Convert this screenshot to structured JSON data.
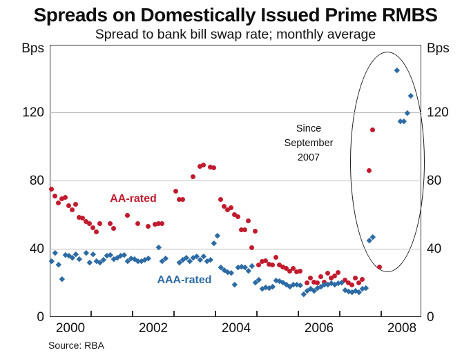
{
  "title": "Spreads on Domestically Issued Prime RMBS",
  "subtitle": "Spread to bank bill swap rate; monthly average",
  "source": "Source: RBA",
  "annotation": {
    "lines": [
      "Since",
      "September",
      "2007"
    ]
  },
  "series_labels": {
    "aa": "AA-rated",
    "aaa": "AAA-rated"
  },
  "colors": {
    "aa": "#c11b2e",
    "aaa": "#2e6ba4",
    "grid": "#bcbcbc",
    "frame": "#2e2e2e"
  },
  "chart_data": {
    "type": "scatter",
    "title": "Spreads on Domestically Issued Prime RMBS",
    "subtitle": "Spread to bank bill swap rate; monthly average",
    "ylabel_left": "Bps",
    "ylabel_right": "Bps",
    "ylim": [
      0,
      160
    ],
    "yticks": [
      0,
      40,
      80,
      120
    ],
    "gridlines": [
      40,
      80,
      120
    ],
    "x_domain_months": [
      "2000-01",
      "2008-12"
    ],
    "xtick_years": [
      2001,
      2002,
      2003,
      2004,
      2005,
      2006,
      2007,
      2008
    ],
    "year_labels": [
      2000,
      2002,
      2004,
      2006,
      2008
    ],
    "legend_position": "inline-labels",
    "annotation_text": "Since September 2007",
    "series": [
      {
        "name": "AA-rated",
        "marker": "circle",
        "color": "#c11b2e",
        "points": [
          [
            "2000-01",
            75
          ],
          [
            "2000-02",
            71
          ],
          [
            "2000-03",
            67
          ],
          [
            "2000-04",
            69.5
          ],
          [
            "2000-05",
            70
          ],
          [
            "2000-06",
            65.5
          ],
          [
            "2000-07",
            63
          ],
          [
            "2000-08",
            66
          ],
          [
            "2000-09",
            58.5
          ],
          [
            "2000-10",
            58
          ],
          [
            "2000-11",
            56
          ],
          [
            "2000-12",
            55
          ],
          [
            "2001-01",
            52.5
          ],
          [
            "2001-02",
            50
          ],
          [
            "2001-03",
            55
          ],
          [
            "2001-06",
            55
          ],
          [
            "2001-07",
            52
          ],
          [
            "2001-11",
            59.5
          ],
          [
            "2002-02",
            55
          ],
          [
            "2002-05",
            53
          ],
          [
            "2002-07",
            54.5
          ],
          [
            "2002-08",
            55
          ],
          [
            "2002-09",
            55
          ],
          [
            "2003-01",
            74
          ],
          [
            "2003-02",
            69
          ],
          [
            "2003-03",
            69
          ],
          [
            "2003-06",
            82.5
          ],
          [
            "2003-08",
            88.5
          ],
          [
            "2003-09",
            89
          ],
          [
            "2003-11",
            88
          ],
          [
            "2003-12",
            87.5
          ],
          [
            "2004-02",
            69
          ],
          [
            "2004-03",
            65
          ],
          [
            "2004-04",
            63
          ],
          [
            "2004-05",
            64
          ],
          [
            "2004-06",
            60
          ],
          [
            "2004-07",
            59
          ],
          [
            "2004-08",
            51
          ],
          [
            "2004-09",
            51
          ],
          [
            "2004-10",
            56.5
          ],
          [
            "2004-11",
            40.5
          ],
          [
            "2004-12",
            50.5
          ],
          [
            "2005-01",
            30.5
          ],
          [
            "2005-02",
            32.5
          ],
          [
            "2005-03",
            33
          ],
          [
            "2005-04",
            31
          ],
          [
            "2005-05",
            30.5
          ],
          [
            "2005-06",
            35
          ],
          [
            "2005-07",
            30.5
          ],
          [
            "2005-08",
            29.5
          ],
          [
            "2005-09",
            28.5
          ],
          [
            "2005-10",
            27
          ],
          [
            "2005-11",
            28.5
          ],
          [
            "2005-12",
            26.5
          ],
          [
            "2006-01",
            27
          ],
          [
            "2006-03",
            20
          ],
          [
            "2006-04",
            23
          ],
          [
            "2006-05",
            20.5
          ],
          [
            "2006-06",
            20
          ],
          [
            "2006-07",
            23.5
          ],
          [
            "2006-08",
            20.5
          ],
          [
            "2006-09",
            25.5
          ],
          [
            "2006-10",
            23
          ],
          [
            "2006-11",
            24
          ],
          [
            "2006-12",
            26
          ],
          [
            "2007-02",
            21.5
          ],
          [
            "2007-03",
            20
          ],
          [
            "2007-04",
            19
          ],
          [
            "2007-05",
            23
          ],
          [
            "2007-06",
            20
          ],
          [
            "2007-07",
            22
          ],
          [
            "2007-09",
            86
          ],
          [
            "2007-10",
            110
          ],
          [
            "2007-12",
            29.5
          ]
        ]
      },
      {
        "name": "AAA-rated",
        "marker": "diamond",
        "color": "#2e6ba4",
        "points": [
          [
            "2000-01",
            33
          ],
          [
            "2000-02",
            37.5
          ],
          [
            "2000-03",
            31
          ],
          [
            "2000-04",
            22.5
          ],
          [
            "2000-05",
            36.5
          ],
          [
            "2000-06",
            36
          ],
          [
            "2000-07",
            35
          ],
          [
            "2000-08",
            37
          ],
          [
            "2000-09",
            34
          ],
          [
            "2000-11",
            37.5
          ],
          [
            "2000-12",
            32
          ],
          [
            "2001-01",
            37
          ],
          [
            "2001-02",
            33
          ],
          [
            "2001-03",
            32
          ],
          [
            "2001-04",
            33.5
          ],
          [
            "2001-05",
            36
          ],
          [
            "2001-06",
            36.5
          ],
          [
            "2001-07",
            34
          ],
          [
            "2001-08",
            35
          ],
          [
            "2001-09",
            36
          ],
          [
            "2001-10",
            36.5
          ],
          [
            "2001-11",
            33
          ],
          [
            "2001-12",
            34.5
          ],
          [
            "2002-01",
            34
          ],
          [
            "2002-02",
            33
          ],
          [
            "2002-03",
            33
          ],
          [
            "2002-04",
            33.5
          ],
          [
            "2002-05",
            34.5
          ],
          [
            "2002-08",
            41
          ],
          [
            "2002-09",
            33
          ],
          [
            "2002-10",
            34.5
          ],
          [
            "2003-02",
            32
          ],
          [
            "2003-03",
            33.5
          ],
          [
            "2003-04",
            35
          ],
          [
            "2003-05",
            33
          ],
          [
            "2003-06",
            35
          ],
          [
            "2003-07",
            35.5
          ],
          [
            "2003-08",
            33.5
          ],
          [
            "2003-09",
            35.5
          ],
          [
            "2003-10",
            33
          ],
          [
            "2003-11",
            33.5
          ],
          [
            "2003-12",
            43.5
          ],
          [
            "2004-01",
            48
          ],
          [
            "2004-02",
            29
          ],
          [
            "2004-03",
            27.5
          ],
          [
            "2004-04",
            26.5
          ],
          [
            "2004-05",
            26
          ],
          [
            "2004-06",
            19
          ],
          [
            "2004-07",
            29
          ],
          [
            "2004-08",
            29.5
          ],
          [
            "2004-09",
            29
          ],
          [
            "2004-10",
            27
          ],
          [
            "2004-11",
            30
          ],
          [
            "2004-12",
            20.5
          ],
          [
            "2005-01",
            22
          ],
          [
            "2005-02",
            16.5
          ],
          [
            "2005-03",
            17.5
          ],
          [
            "2005-04",
            17
          ],
          [
            "2005-05",
            18
          ],
          [
            "2005-06",
            21.5
          ],
          [
            "2005-07",
            21
          ],
          [
            "2005-08",
            20.5
          ],
          [
            "2005-09",
            19
          ],
          [
            "2005-10",
            18
          ],
          [
            "2005-11",
            19
          ],
          [
            "2005-12",
            19
          ],
          [
            "2006-01",
            18.5
          ],
          [
            "2006-02",
            13.5
          ],
          [
            "2006-03",
            15.5
          ],
          [
            "2006-04",
            16.5
          ],
          [
            "2006-05",
            15.5
          ],
          [
            "2006-06",
            17
          ],
          [
            "2006-07",
            18
          ],
          [
            "2006-08",
            19
          ],
          [
            "2006-09",
            19
          ],
          [
            "2006-10",
            20
          ],
          [
            "2006-11",
            19
          ],
          [
            "2006-12",
            20
          ],
          [
            "2007-01",
            20.5
          ],
          [
            "2007-02",
            16
          ],
          [
            "2007-03",
            15
          ],
          [
            "2007-04",
            14.5
          ],
          [
            "2007-05",
            15.5
          ],
          [
            "2007-06",
            14.5
          ],
          [
            "2007-07",
            16.5
          ],
          [
            "2007-08",
            17
          ],
          [
            "2007-09",
            45
          ],
          [
            "2007-10",
            47
          ],
          [
            "2008-05",
            145
          ],
          [
            "2008-06",
            115
          ],
          [
            "2008-07",
            115
          ],
          [
            "2008-08",
            120
          ],
          [
            "2008-09",
            130
          ]
        ]
      }
    ]
  }
}
